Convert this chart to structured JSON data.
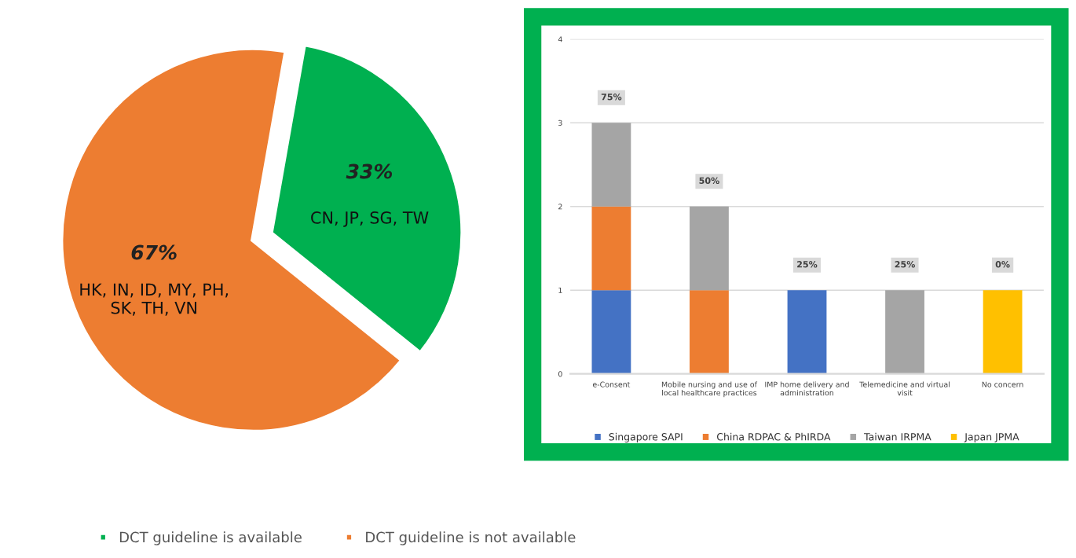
{
  "chart_data": [
    {
      "type": "pie",
      "categories": [
        "DCT guideline is available",
        "DCT guideline is not available"
      ],
      "values": [
        33,
        67
      ],
      "colors": [
        "#00b050",
        "#ed7d31"
      ],
      "value_labels": [
        "33%",
        "67%"
      ],
      "annotations": [
        "CN, JP, SG, TW",
        "HK, IN, ID, MY, PH,\nSK, TH, VN"
      ],
      "legend": "bottom"
    },
    {
      "type": "bar",
      "stacked": true,
      "categories": [
        "e-Consent",
        "Mobile nursing and use of\nlocal healthcare practices",
        "IMP home delivery and\nadministration",
        "Telemedicine and virtual\nvisit",
        "No concern"
      ],
      "series": [
        {
          "name": "Singapore SAPI",
          "color": "#4472c4",
          "values": [
            1,
            null,
            1,
            null,
            null
          ]
        },
        {
          "name": "China RDPAC & PhIRDA",
          "color": "#ed7d31",
          "values": [
            1,
            1,
            null,
            null,
            null
          ]
        },
        {
          "name": "Taiwan IRPMA",
          "color": "#a5a5a5",
          "values": [
            1,
            1,
            null,
            1,
            null
          ]
        },
        {
          "name": "Japan JPMA",
          "color": "#ffc000",
          "values": [
            null,
            null,
            null,
            null,
            1
          ]
        }
      ],
      "annotations": [
        "75%",
        "50%",
        "25%",
        "25%",
        "0%"
      ],
      "ylim": [
        0,
        4
      ],
      "yticks": [
        0,
        1,
        2,
        3,
        4
      ],
      "grid": "y",
      "legend": "bottom"
    }
  ]
}
